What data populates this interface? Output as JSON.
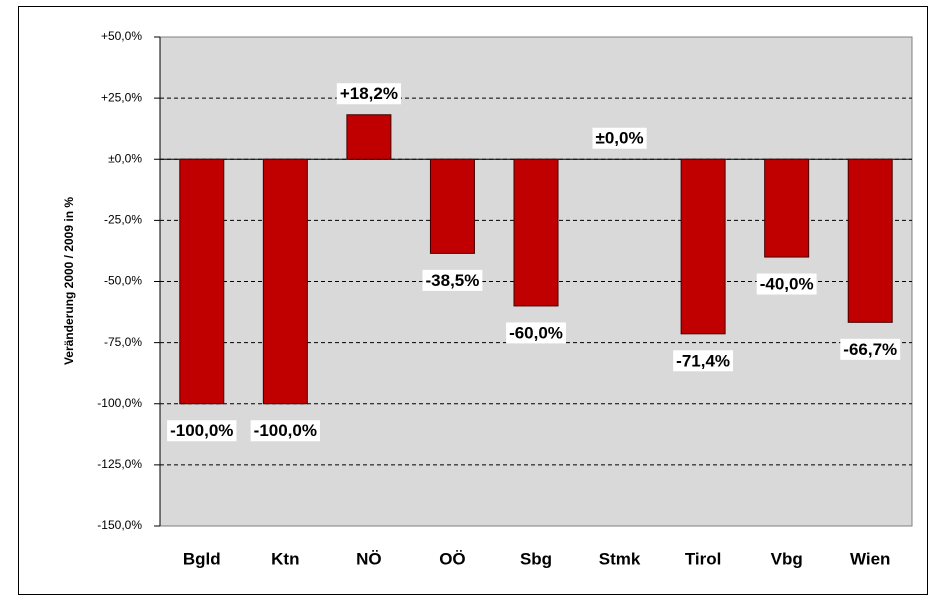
{
  "chart_data": {
    "type": "bar",
    "y_label": "Veränderung 2000 / 2009 in %",
    "categories": [
      "Bgld",
      "Ktn",
      "NÖ",
      "OÖ",
      "Sbg",
      "Stmk",
      "Tirol",
      "Vbg",
      "Wien"
    ],
    "values": [
      -100,
      -100,
      18.2,
      -38.5,
      -60,
      0,
      -71.4,
      -40,
      -66.7
    ],
    "value_labels": [
      "-100,0%",
      "-100,0%",
      "+18,2%",
      "-38,5%",
      "-60,0%",
      "±0,0%",
      "-71,4%",
      "-40,0%",
      "-66,7%"
    ],
    "color": "#c00000",
    "ylim": [
      -150,
      50
    ],
    "yticks": [
      {
        "value": -150,
        "label": "-150,0%"
      },
      {
        "value": -125,
        "label": "-125,0%"
      },
      {
        "value": -100,
        "label": "-100,0%"
      },
      {
        "value": -75,
        "label": "-75,0%"
      },
      {
        "value": -50,
        "label": "-50,0%"
      },
      {
        "value": -25,
        "label": "-25,0%"
      },
      {
        "value": 0,
        "label": "±0,0%"
      },
      {
        "value": 25,
        "label": "+25,0%"
      },
      {
        "value": 50,
        "label": "+50,0%"
      }
    ],
    "grid": true
  }
}
